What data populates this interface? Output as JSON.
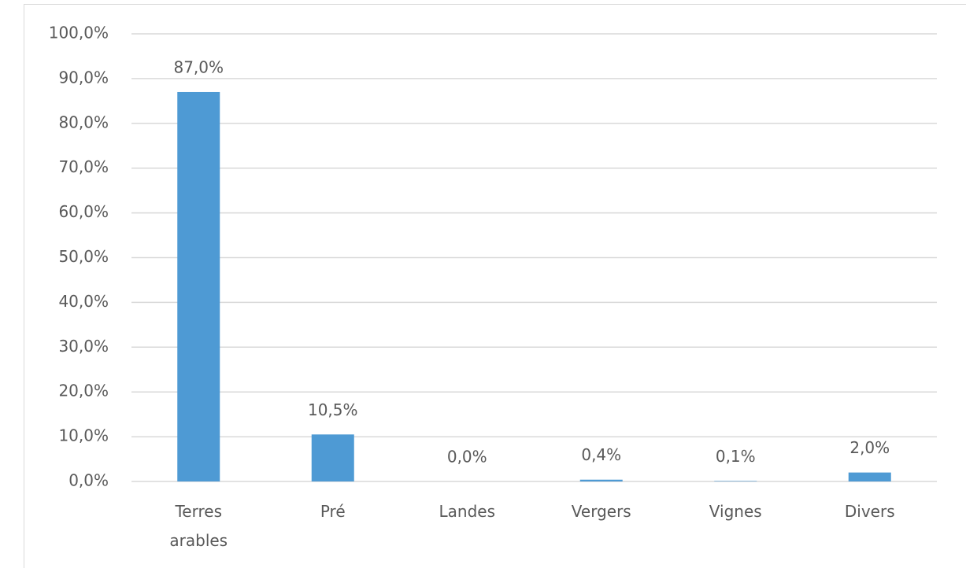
{
  "chart_data": {
    "type": "bar",
    "categories": [
      "Terres arables",
      "Pré",
      "Landes",
      "Vergers",
      "Vignes",
      "Divers"
    ],
    "values": [
      87.0,
      10.5,
      0.0,
      0.4,
      0.1,
      2.0
    ],
    "value_labels": [
      "87,0%",
      "10,5%",
      "0,0%",
      "0,4%",
      "0,1%",
      "2,0%"
    ],
    "color": "#4e9ad4",
    "ylim": [
      0,
      100
    ],
    "yticks": [
      {
        "value": 0,
        "label": "0,0%"
      },
      {
        "value": 10,
        "label": "10,0%"
      },
      {
        "value": 20,
        "label": "20,0%"
      },
      {
        "value": 30,
        "label": "30,0%"
      },
      {
        "value": 40,
        "label": "40,0%"
      },
      {
        "value": 50,
        "label": "50,0%"
      },
      {
        "value": 60,
        "label": "60,0%"
      },
      {
        "value": 70,
        "label": "70,0%"
      },
      {
        "value": 80,
        "label": "80,0%"
      },
      {
        "value": 90,
        "label": "90,0%"
      },
      {
        "value": 100,
        "label": "100,0%"
      }
    ],
    "grid": true
  }
}
